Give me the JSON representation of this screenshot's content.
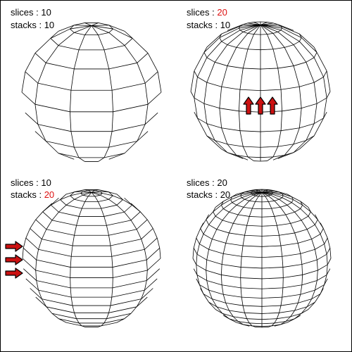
{
  "colors": {
    "wire": "#000000",
    "highlight": "#dd1111",
    "arrow_fill": "#cc1111",
    "frame": "#000000"
  },
  "panels": [
    {
      "slices_label": "slices",
      "slices_value": "10",
      "slices_highlight": false,
      "stacks_label": "stacks",
      "stacks_value": "10",
      "stacks_highlight": false,
      "slices": 10,
      "stacks": 10,
      "arrows": "none",
      "arrow_count": 0
    },
    {
      "slices_label": "slices",
      "slices_value": "20",
      "slices_highlight": true,
      "stacks_label": "stacks",
      "stacks_value": "10",
      "stacks_highlight": false,
      "slices": 20,
      "stacks": 10,
      "arrows": "up",
      "arrow_count": 3
    },
    {
      "slices_label": "slices",
      "slices_value": "10",
      "slices_highlight": false,
      "stacks_label": "stacks",
      "stacks_value": "20",
      "stacks_highlight": true,
      "slices": 10,
      "stacks": 20,
      "arrows": "right",
      "arrow_count": 3
    },
    {
      "slices_label": "slices",
      "slices_value": "20",
      "slices_highlight": false,
      "stacks_label": "stacks",
      "stacks_value": "20",
      "stacks_highlight": false,
      "slices": 20,
      "stacks": 20,
      "arrows": "none",
      "arrow_count": 0
    }
  ]
}
